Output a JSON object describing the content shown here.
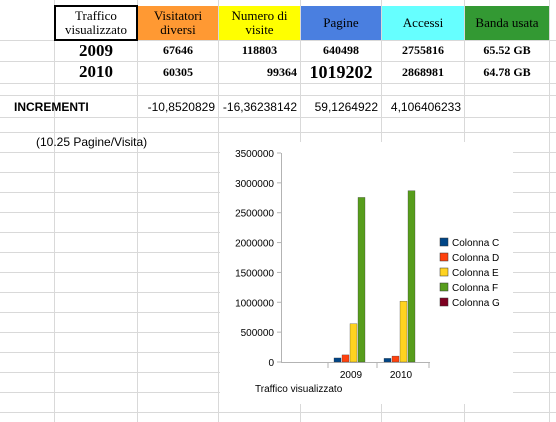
{
  "table": {
    "headers": [
      {
        "label": "Traffico visualizzato",
        "color": "#ffffff"
      },
      {
        "label": "Visitatori diversi",
        "color": "#ff9933"
      },
      {
        "label": "Numero di visite",
        "color": "#ffff00"
      },
      {
        "label": "Pagine",
        "color": "#4a7fe0"
      },
      {
        "label": "Accessi",
        "color": "#66ffff"
      },
      {
        "label": "Banda usata",
        "color": "#339933"
      }
    ],
    "rows": [
      {
        "year": "2009",
        "visitatori": "67646",
        "visite": "118803",
        "pagine": "640498",
        "accessi": "2755816",
        "banda": "65.52 GB"
      },
      {
        "year": "2010",
        "visitatori": "60305",
        "visite": "99364",
        "pagine": "1019202",
        "accessi": "2868981",
        "banda": "64.78 GB"
      }
    ],
    "increments": {
      "label": "INCREMENTI",
      "values": [
        "-10,8520829",
        "-16,36238142",
        "59,1264922",
        "4,106406233"
      ]
    },
    "note": "(10.25 Pagine/Visita)"
  },
  "chart_data": {
    "type": "bar",
    "categories": [
      "2009",
      "2010"
    ],
    "xlabel": "Traffico visualizzato",
    "ylim": [
      0,
      3500000
    ],
    "yticks": [
      "0",
      "500000",
      "1000000",
      "1500000",
      "2000000",
      "2500000",
      "3000000",
      "3500000"
    ],
    "series": [
      {
        "name": "Colonna C",
        "color": "#004586",
        "values": [
          67646,
          60305
        ]
      },
      {
        "name": "Colonna D",
        "color": "#ff420e",
        "values": [
          118803,
          99364
        ]
      },
      {
        "name": "Colonna E",
        "color": "#ffd320",
        "values": [
          640498,
          1019202
        ]
      },
      {
        "name": "Colonna F",
        "color": "#579d1c",
        "values": [
          2755816,
          2868981
        ]
      },
      {
        "name": "Colonna G",
        "color": "#7e0021",
        "values": [
          0,
          0
        ]
      }
    ],
    "legend": "right",
    "grid": false
  }
}
